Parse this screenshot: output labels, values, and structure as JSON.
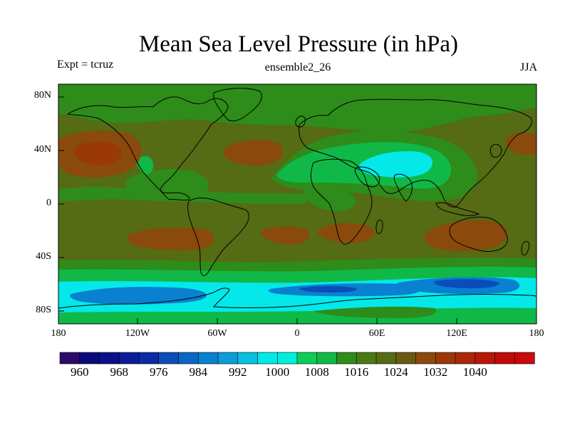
{
  "title": "Mean Sea Level Pressure (in hPa)",
  "left_label": "Expt = tcruz",
  "center_label": "ensemble2_26",
  "right_label": "JJA",
  "lat_ticks": [
    "80N",
    "40N",
    "0",
    "40S",
    "80S"
  ],
  "lon_ticks": [
    "180",
    "120W",
    "60W",
    "0",
    "60E",
    "120E",
    "180"
  ],
  "colorbar": {
    "labels": [
      "960",
      "968",
      "976",
      "984",
      "992",
      "1000",
      "1008",
      "1016",
      "1024",
      "1032",
      "1040"
    ],
    "colors": [
      "#2b0a6b",
      "#0a0a7a",
      "#0b108a",
      "#0c1c98",
      "#0d2aa6",
      "#0a4db8",
      "#0a66c4",
      "#0a80d0",
      "#0c9cd8",
      "#08c0e0",
      "#04e8ea",
      "#00eedd",
      "#10cc55",
      "#10b848",
      "#2e8c1a",
      "#4a7a14",
      "#556b14",
      "#6a5a10",
      "#8a4a0c",
      "#9a3808",
      "#a82808",
      "#b81808",
      "#c00c08",
      "#c80a0a"
    ]
  },
  "map": {
    "background_color": "#556b14",
    "pressure_regions": [
      {
        "level": "1024",
        "color": "#8a4a0c",
        "label": "North Pacific high"
      },
      {
        "level": "1024",
        "color": "#8a4a0c",
        "label": "Azores high"
      },
      {
        "level": "1024",
        "color": "#8a4a0c",
        "label": "South Pacific high"
      },
      {
        "level": "1024",
        "color": "#8a4a0c",
        "label": "South Atlantic high"
      },
      {
        "level": "1024",
        "color": "#8a4a0c",
        "label": "Indian Ocean / Australia high"
      },
      {
        "level": "1000",
        "color": "#04e8ea",
        "label": "South Asian low"
      },
      {
        "level": "992",
        "color": "#0a66c4",
        "label": "Southern Ocean trough"
      }
    ]
  }
}
